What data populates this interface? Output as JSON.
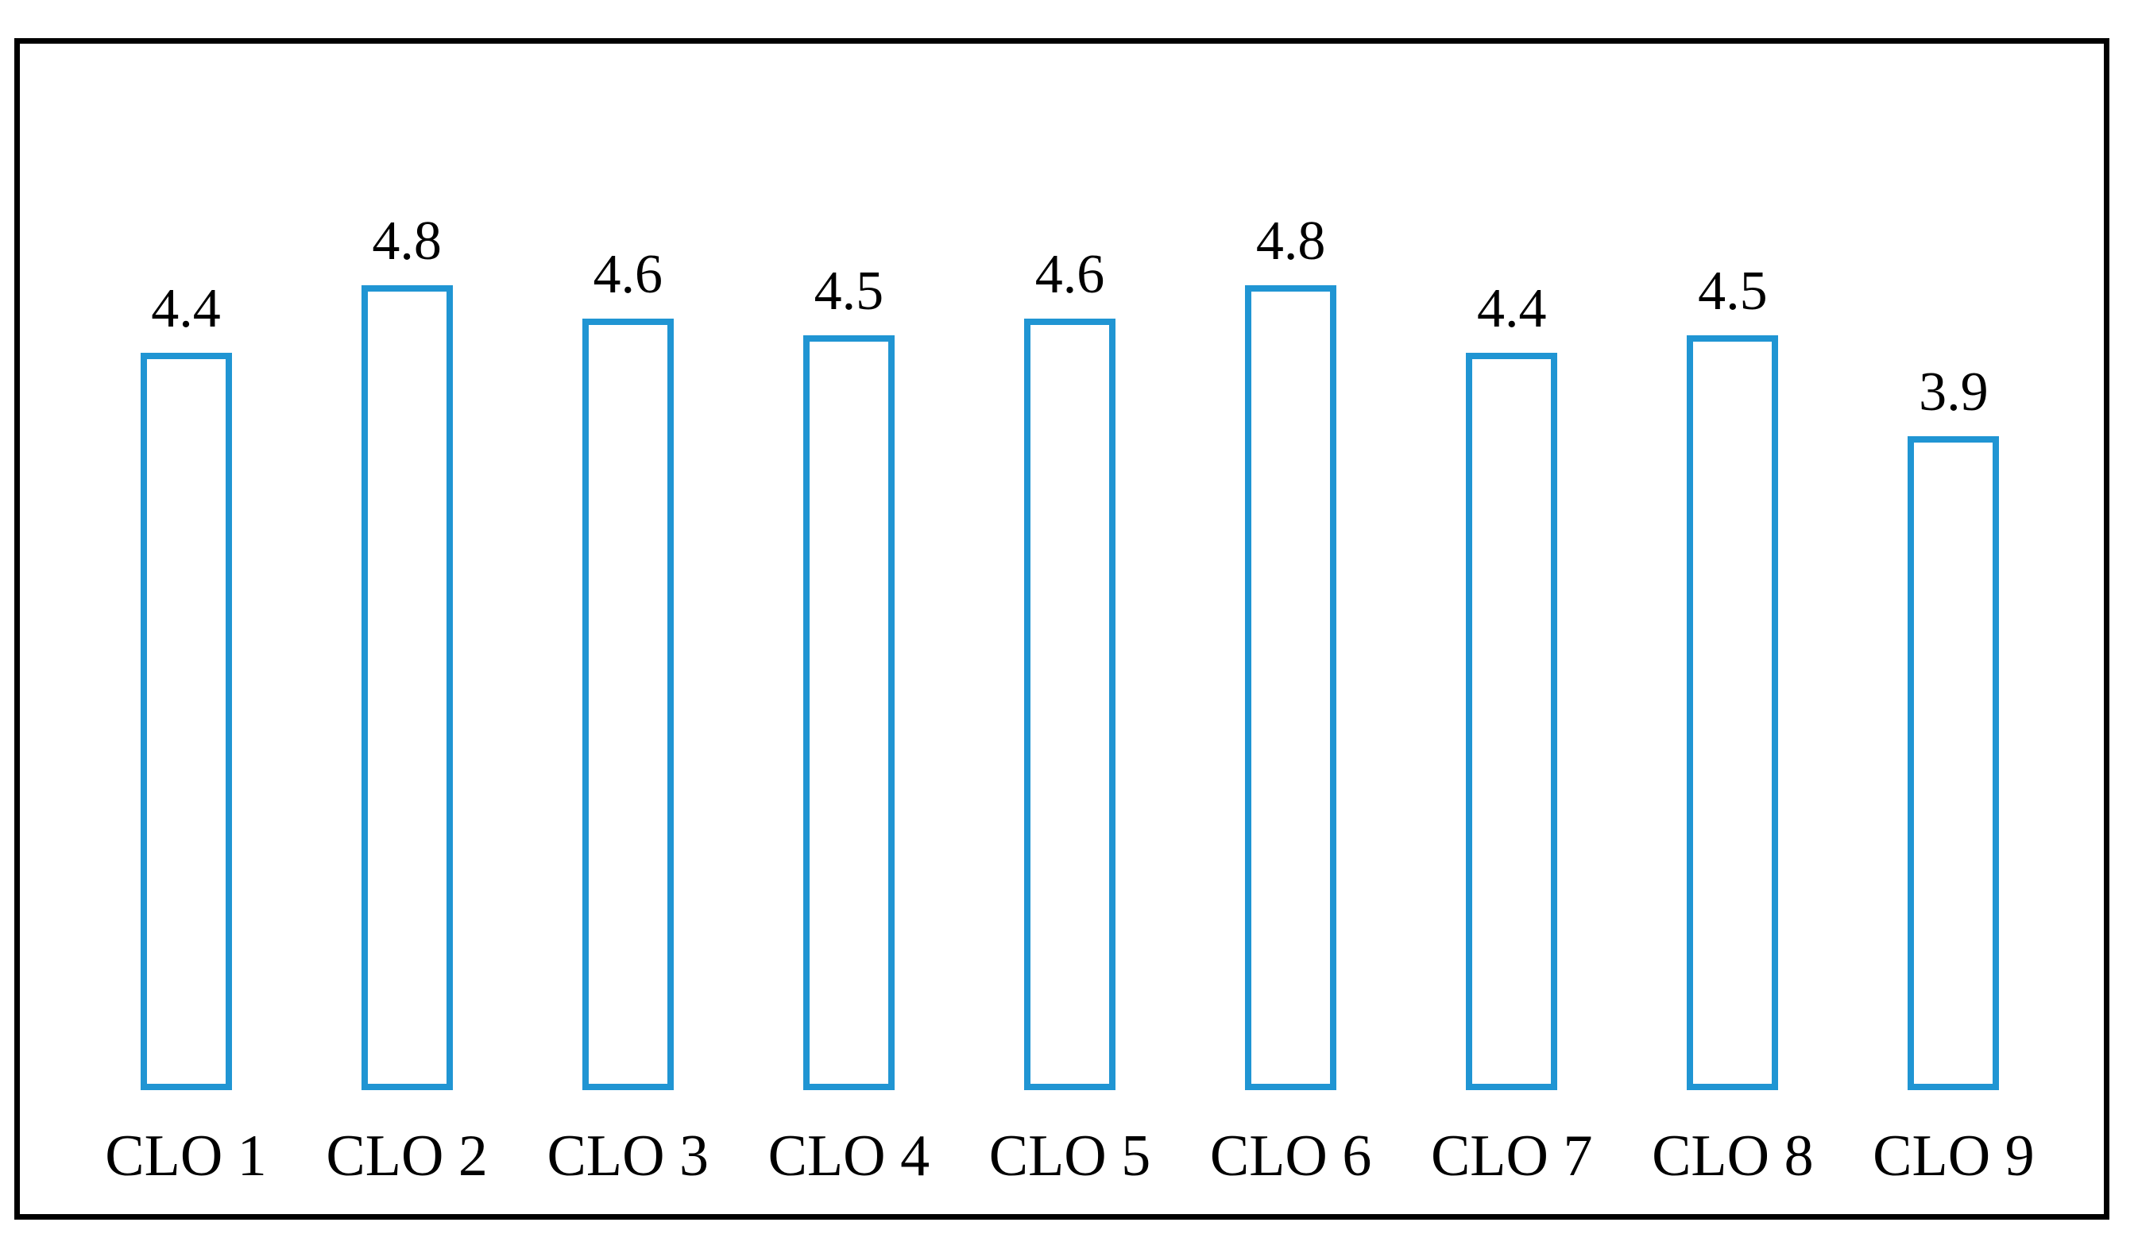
{
  "chart_data": {
    "type": "bar",
    "title": "",
    "xlabel": "",
    "ylabel": "",
    "categories": [
      "CLO 1",
      "CLO 2",
      "CLO 3",
      "CLO 4",
      "CLO 5",
      "CLO 6",
      "CLO 7",
      "CLO 8",
      "CLO 9"
    ],
    "values": [
      4.4,
      4.8,
      4.6,
      4.5,
      4.6,
      4.8,
      4.4,
      4.5,
      3.9
    ],
    "data_labels": [
      "4.4",
      "4.8",
      "4.6",
      "4.5",
      "4.6",
      "4.8",
      "4.4",
      "4.5",
      "3.9"
    ],
    "ylim": [
      0,
      6.3
    ],
    "grid": false,
    "legend_position": "none",
    "axes_visible": false,
    "bar_fill": "none",
    "bar_outline_color": "#2095D3",
    "frame_border_color": "#000000",
    "label_color": "#000000"
  }
}
